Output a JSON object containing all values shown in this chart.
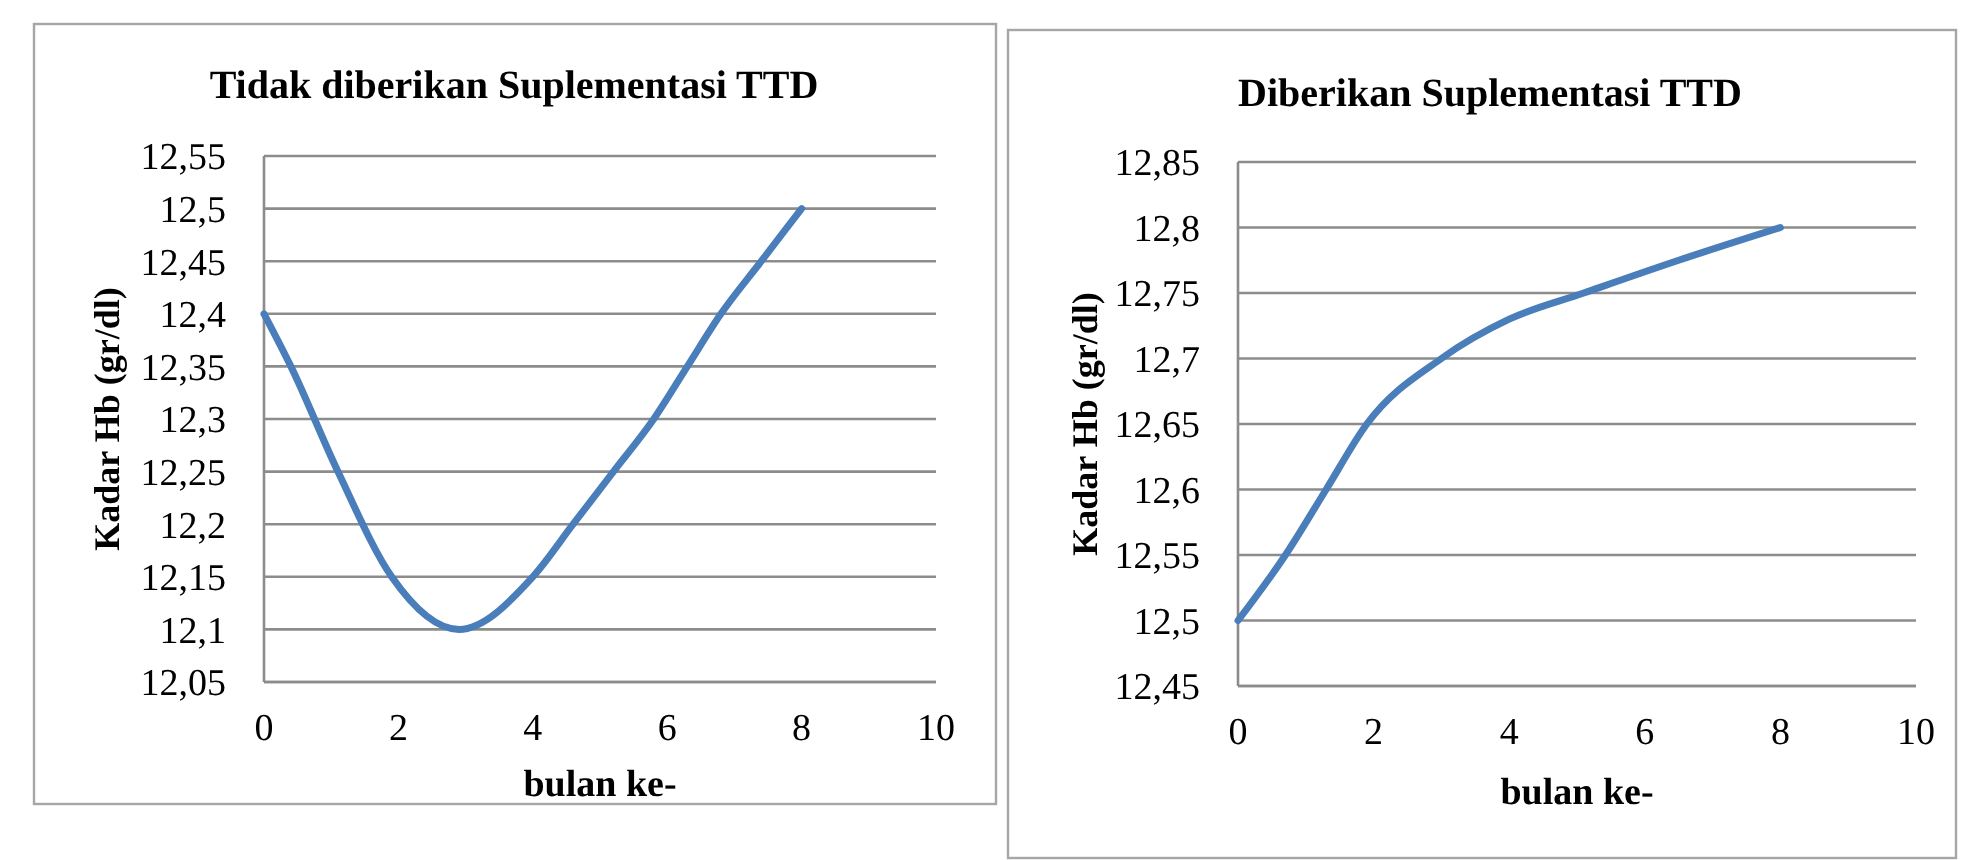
{
  "chart_data": [
    {
      "type": "line",
      "title": "Tidak diberikan Suplementasi TTD",
      "xlabel": "bulan ke-",
      "ylabel": "Kadar Hb (gr/dl)",
      "x": [
        0,
        0.4,
        1.1,
        1.9,
        2.9,
        4,
        4.6,
        5.2,
        5.8,
        6.3,
        6.8,
        7.4,
        8
      ],
      "values": [
        12.4,
        12.35,
        12.25,
        12.15,
        12.1,
        12.15,
        12.2,
        12.25,
        12.3,
        12.35,
        12.4,
        12.45,
        12.5
      ],
      "color": "#4a7ebb",
      "xlim": [
        0,
        10
      ],
      "xticks": [
        0,
        2,
        4,
        6,
        8,
        10
      ],
      "ylim": [
        12.05,
        12.55
      ],
      "yticks": [
        {
          "value": 12.05,
          "label": "12,05"
        },
        {
          "value": 12.1,
          "label": "12,1"
        },
        {
          "value": 12.15,
          "label": "12,15"
        },
        {
          "value": 12.2,
          "label": "12,2"
        },
        {
          "value": 12.25,
          "label": "12,25"
        },
        {
          "value": 12.3,
          "label": "12,3"
        },
        {
          "value": 12.35,
          "label": "12,35"
        },
        {
          "value": 12.4,
          "label": "12,4"
        },
        {
          "value": 12.45,
          "label": "12,45"
        },
        {
          "value": 12.5,
          "label": "12,5"
        },
        {
          "value": 12.55,
          "label": "12,55"
        }
      ],
      "grid": "y"
    },
    {
      "type": "line",
      "title": "Diberikan Suplementasi TTD",
      "xlabel": "bulan ke-",
      "ylabel": "Kadar Hb (gr/dl)",
      "x": [
        0,
        0.7,
        1.3,
        1.9,
        3,
        4,
        5.1,
        6.5,
        8
      ],
      "values": [
        12.5,
        12.55,
        12.6,
        12.65,
        12.7,
        12.73,
        12.75,
        12.775,
        12.8
      ],
      "color": "#4a7ebb",
      "xlim": [
        0,
        10
      ],
      "xticks": [
        0,
        2,
        4,
        6,
        8,
        10
      ],
      "ylim": [
        12.45,
        12.85
      ],
      "yticks": [
        {
          "value": 12.45,
          "label": "12,45"
        },
        {
          "value": 12.5,
          "label": "12,5"
        },
        {
          "value": 12.55,
          "label": "12,55"
        },
        {
          "value": 12.6,
          "label": "12,6"
        },
        {
          "value": 12.65,
          "label": "12,65"
        },
        {
          "value": 12.7,
          "label": "12,7"
        },
        {
          "value": 12.75,
          "label": "12,75"
        },
        {
          "value": 12.8,
          "label": "12,8"
        },
        {
          "value": 12.85,
          "label": "12,85"
        }
      ],
      "grid": "y"
    }
  ]
}
